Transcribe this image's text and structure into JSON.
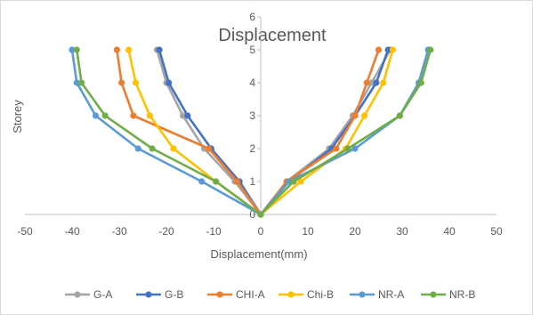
{
  "chart_data": {
    "type": "line",
    "title": "Displacement",
    "xlabel": "Displacement(mm)",
    "ylabel": "Storey",
    "xlim": [
      -50,
      50
    ],
    "ylim": [
      0,
      6
    ],
    "x_ticks": [
      -50,
      -40,
      -30,
      -20,
      -10,
      0,
      10,
      20,
      30,
      40,
      50
    ],
    "y_ticks": [
      0,
      1,
      2,
      3,
      4,
      5,
      6
    ],
    "grid": "none",
    "legend_position": "bottom",
    "series": [
      {
        "name": "G-A",
        "color": "#a5a5a5",
        "left": [
          [
            0,
            0
          ],
          [
            -5.5,
            1
          ],
          [
            -12,
            2
          ],
          [
            -16.5,
            3
          ],
          [
            -20,
            4
          ],
          [
            -22,
            5
          ]
        ],
        "right": [
          [
            0,
            0
          ],
          [
            5.5,
            1
          ],
          [
            14.5,
            2
          ],
          [
            19.5,
            3
          ],
          [
            23.5,
            4
          ],
          [
            27.5,
            5
          ]
        ]
      },
      {
        "name": "G-B",
        "color": "#4472c4",
        "left": [
          [
            0,
            0
          ],
          [
            -4.5,
            1
          ],
          [
            -10.5,
            2
          ],
          [
            -15.5,
            3
          ],
          [
            -19.5,
            4
          ],
          [
            -21.5,
            5
          ]
        ],
        "right": [
          [
            0,
            0
          ],
          [
            6,
            1
          ],
          [
            15,
            2
          ],
          [
            20,
            3
          ],
          [
            24.5,
            4
          ],
          [
            27,
            5
          ]
        ]
      },
      {
        "name": "CHI-A",
        "color": "#ed7d31",
        "left": [
          [
            0,
            0
          ],
          [
            -5,
            1
          ],
          [
            -11,
            2
          ],
          [
            -27,
            3
          ],
          [
            -29.5,
            4
          ],
          [
            -30.5,
            5
          ]
        ],
        "right": [
          [
            0,
            0
          ],
          [
            5.5,
            1
          ],
          [
            16,
            2
          ],
          [
            20,
            3
          ],
          [
            22.5,
            4
          ],
          [
            25,
            5
          ]
        ]
      },
      {
        "name": "Chi-B",
        "color": "#ffc000",
        "left": [
          [
            0,
            0
          ],
          [
            -9.5,
            1
          ],
          [
            -18.5,
            2
          ],
          [
            -23.5,
            3
          ],
          [
            -26.5,
            4
          ],
          [
            -28,
            5
          ]
        ],
        "right": [
          [
            0,
            0
          ],
          [
            8.5,
            1
          ],
          [
            18,
            2
          ],
          [
            22,
            3
          ],
          [
            26,
            4
          ],
          [
            28,
            5
          ]
        ]
      },
      {
        "name": "NR-A",
        "color": "#5b9bd5",
        "left": [
          [
            0,
            0
          ],
          [
            -12.5,
            1
          ],
          [
            -26,
            2
          ],
          [
            -35,
            3
          ],
          [
            -39,
            4
          ],
          [
            -40,
            5
          ]
        ],
        "right": [
          [
            0,
            0
          ],
          [
            6,
            1
          ],
          [
            20,
            2
          ],
          [
            29.5,
            3
          ],
          [
            33.5,
            4
          ],
          [
            35.5,
            5
          ]
        ]
      },
      {
        "name": "NR-B",
        "color": "#70ad47",
        "left": [
          [
            0,
            0
          ],
          [
            -9.5,
            1
          ],
          [
            -23,
            2
          ],
          [
            -33,
            3
          ],
          [
            -38,
            4
          ],
          [
            -39,
            5
          ]
        ],
        "right": [
          [
            0,
            0
          ],
          [
            7,
            1
          ],
          [
            18.5,
            2
          ],
          [
            29.5,
            3
          ],
          [
            34,
            4
          ],
          [
            36,
            5
          ]
        ]
      }
    ]
  }
}
